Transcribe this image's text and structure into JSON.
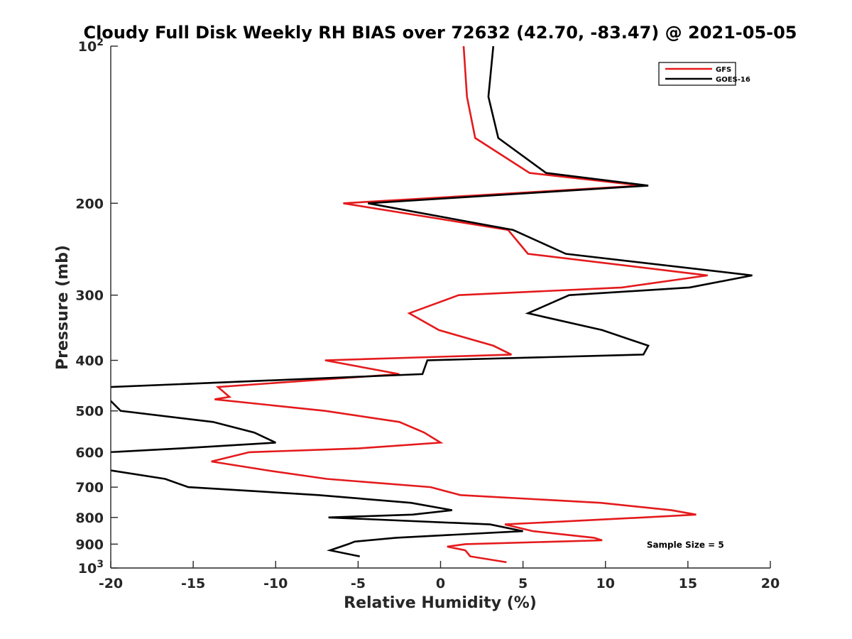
{
  "chart_data": {
    "type": "line",
    "title": "Cloudy Full Disk Weekly RH BIAS over 72632 (42.70, -83.47) @ 2021-05-05",
    "xlabel": "Relative Humidity (%)",
    "ylabel": "Pressure (mb)",
    "xlim": [
      -20,
      20
    ],
    "ylim": [
      100,
      1000
    ],
    "y_scale": "log",
    "y_reversed": true,
    "x_ticks": [
      -20,
      -15,
      -10,
      -5,
      0,
      5,
      10,
      15,
      20
    ],
    "x_tick_labels": [
      "-20",
      "-15",
      "-10",
      "-5",
      "0",
      "5",
      "10",
      "15",
      "20"
    ],
    "y_ticks": [
      100,
      200,
      300,
      400,
      500,
      600,
      700,
      800,
      900,
      1000
    ],
    "y_tick_labels": [
      {
        "base": "10",
        "exp": "2"
      },
      {
        "base": "200"
      },
      {
        "base": "300"
      },
      {
        "base": "400"
      },
      {
        "base": "500"
      },
      {
        "base": "600"
      },
      {
        "base": "700"
      },
      {
        "base": "800"
      },
      {
        "base": "900"
      },
      {
        "base": "10",
        "exp": "3"
      }
    ],
    "legend_position": "top-right",
    "grid": false,
    "series": [
      {
        "name": "GFS",
        "color": "#e41a1c",
        "points": [
          [
            1.4,
            100
          ],
          [
            1.6,
            125
          ],
          [
            2.1,
            150
          ],
          [
            5.4,
            175
          ],
          [
            12.2,
            185
          ],
          [
            -5.9,
            200
          ],
          [
            4.1,
            225
          ],
          [
            5.3,
            250
          ],
          [
            16.2,
            275
          ],
          [
            11.0,
            290
          ],
          [
            1.1,
            300
          ],
          [
            -1.9,
            325
          ],
          [
            -0.1,
            350
          ],
          [
            3.2,
            375
          ],
          [
            4.3,
            390
          ],
          [
            -7.0,
            400
          ],
          [
            -2.5,
            425
          ],
          [
            -13.5,
            450
          ],
          [
            -12.8,
            470
          ],
          [
            -13.7,
            475
          ],
          [
            -7.0,
            500
          ],
          [
            -2.5,
            525
          ],
          [
            -1.0,
            550
          ],
          [
            0.0,
            575
          ],
          [
            -5.0,
            590
          ],
          [
            -11.6,
            600
          ],
          [
            -13.9,
            625
          ],
          [
            -10.5,
            650
          ],
          [
            -6.9,
            675
          ],
          [
            -0.6,
            700
          ],
          [
            1.2,
            725
          ],
          [
            9.7,
            750
          ],
          [
            14.0,
            775
          ],
          [
            15.5,
            790
          ],
          [
            12.3,
            800
          ],
          [
            3.9,
            825
          ],
          [
            5.6,
            850
          ],
          [
            9.3,
            875
          ],
          [
            9.8,
            885
          ],
          [
            1.5,
            900
          ],
          [
            0.4,
            910
          ],
          [
            1.5,
            925
          ],
          [
            1.8,
            950
          ],
          [
            4.0,
            975
          ]
        ]
      },
      {
        "name": "GOES-16",
        "color": "#000000",
        "points": [
          [
            3.2,
            100
          ],
          [
            2.9,
            125
          ],
          [
            3.5,
            150
          ],
          [
            6.4,
            175
          ],
          [
            12.6,
            185
          ],
          [
            -4.4,
            200
          ],
          [
            4.4,
            225
          ],
          [
            7.6,
            250
          ],
          [
            18.9,
            275
          ],
          [
            15.1,
            290
          ],
          [
            7.8,
            300
          ],
          [
            5.3,
            325
          ],
          [
            9.8,
            350
          ],
          [
            12.6,
            375
          ],
          [
            12.3,
            390
          ],
          [
            -0.8,
            400
          ],
          [
            -1.1,
            425
          ],
          [
            -20.0,
            450
          ],
          [
            -20.3,
            470
          ],
          [
            -20.1,
            475
          ],
          [
            -19.4,
            500
          ],
          [
            -13.8,
            525
          ],
          [
            -11.3,
            550
          ],
          [
            -10.0,
            575
          ],
          [
            -15.8,
            590
          ],
          [
            -20.1,
            600
          ],
          [
            -20.3,
            625
          ],
          [
            -20.0,
            650
          ],
          [
            -16.7,
            675
          ],
          [
            -15.3,
            700
          ],
          [
            -7.4,
            725
          ],
          [
            -1.8,
            750
          ],
          [
            0.7,
            775
          ],
          [
            -1.7,
            790
          ],
          [
            -6.8,
            800
          ],
          [
            3.0,
            825
          ],
          [
            5.0,
            850
          ],
          [
            -2.7,
            875
          ],
          [
            -5.2,
            890
          ],
          [
            -5.6,
            900
          ],
          [
            -6.7,
            925
          ],
          [
            -4.9,
            950
          ]
        ]
      }
    ],
    "annotations": [
      {
        "text": "Sample Size = 5",
        "x": 12.5,
        "y": 900
      }
    ]
  }
}
